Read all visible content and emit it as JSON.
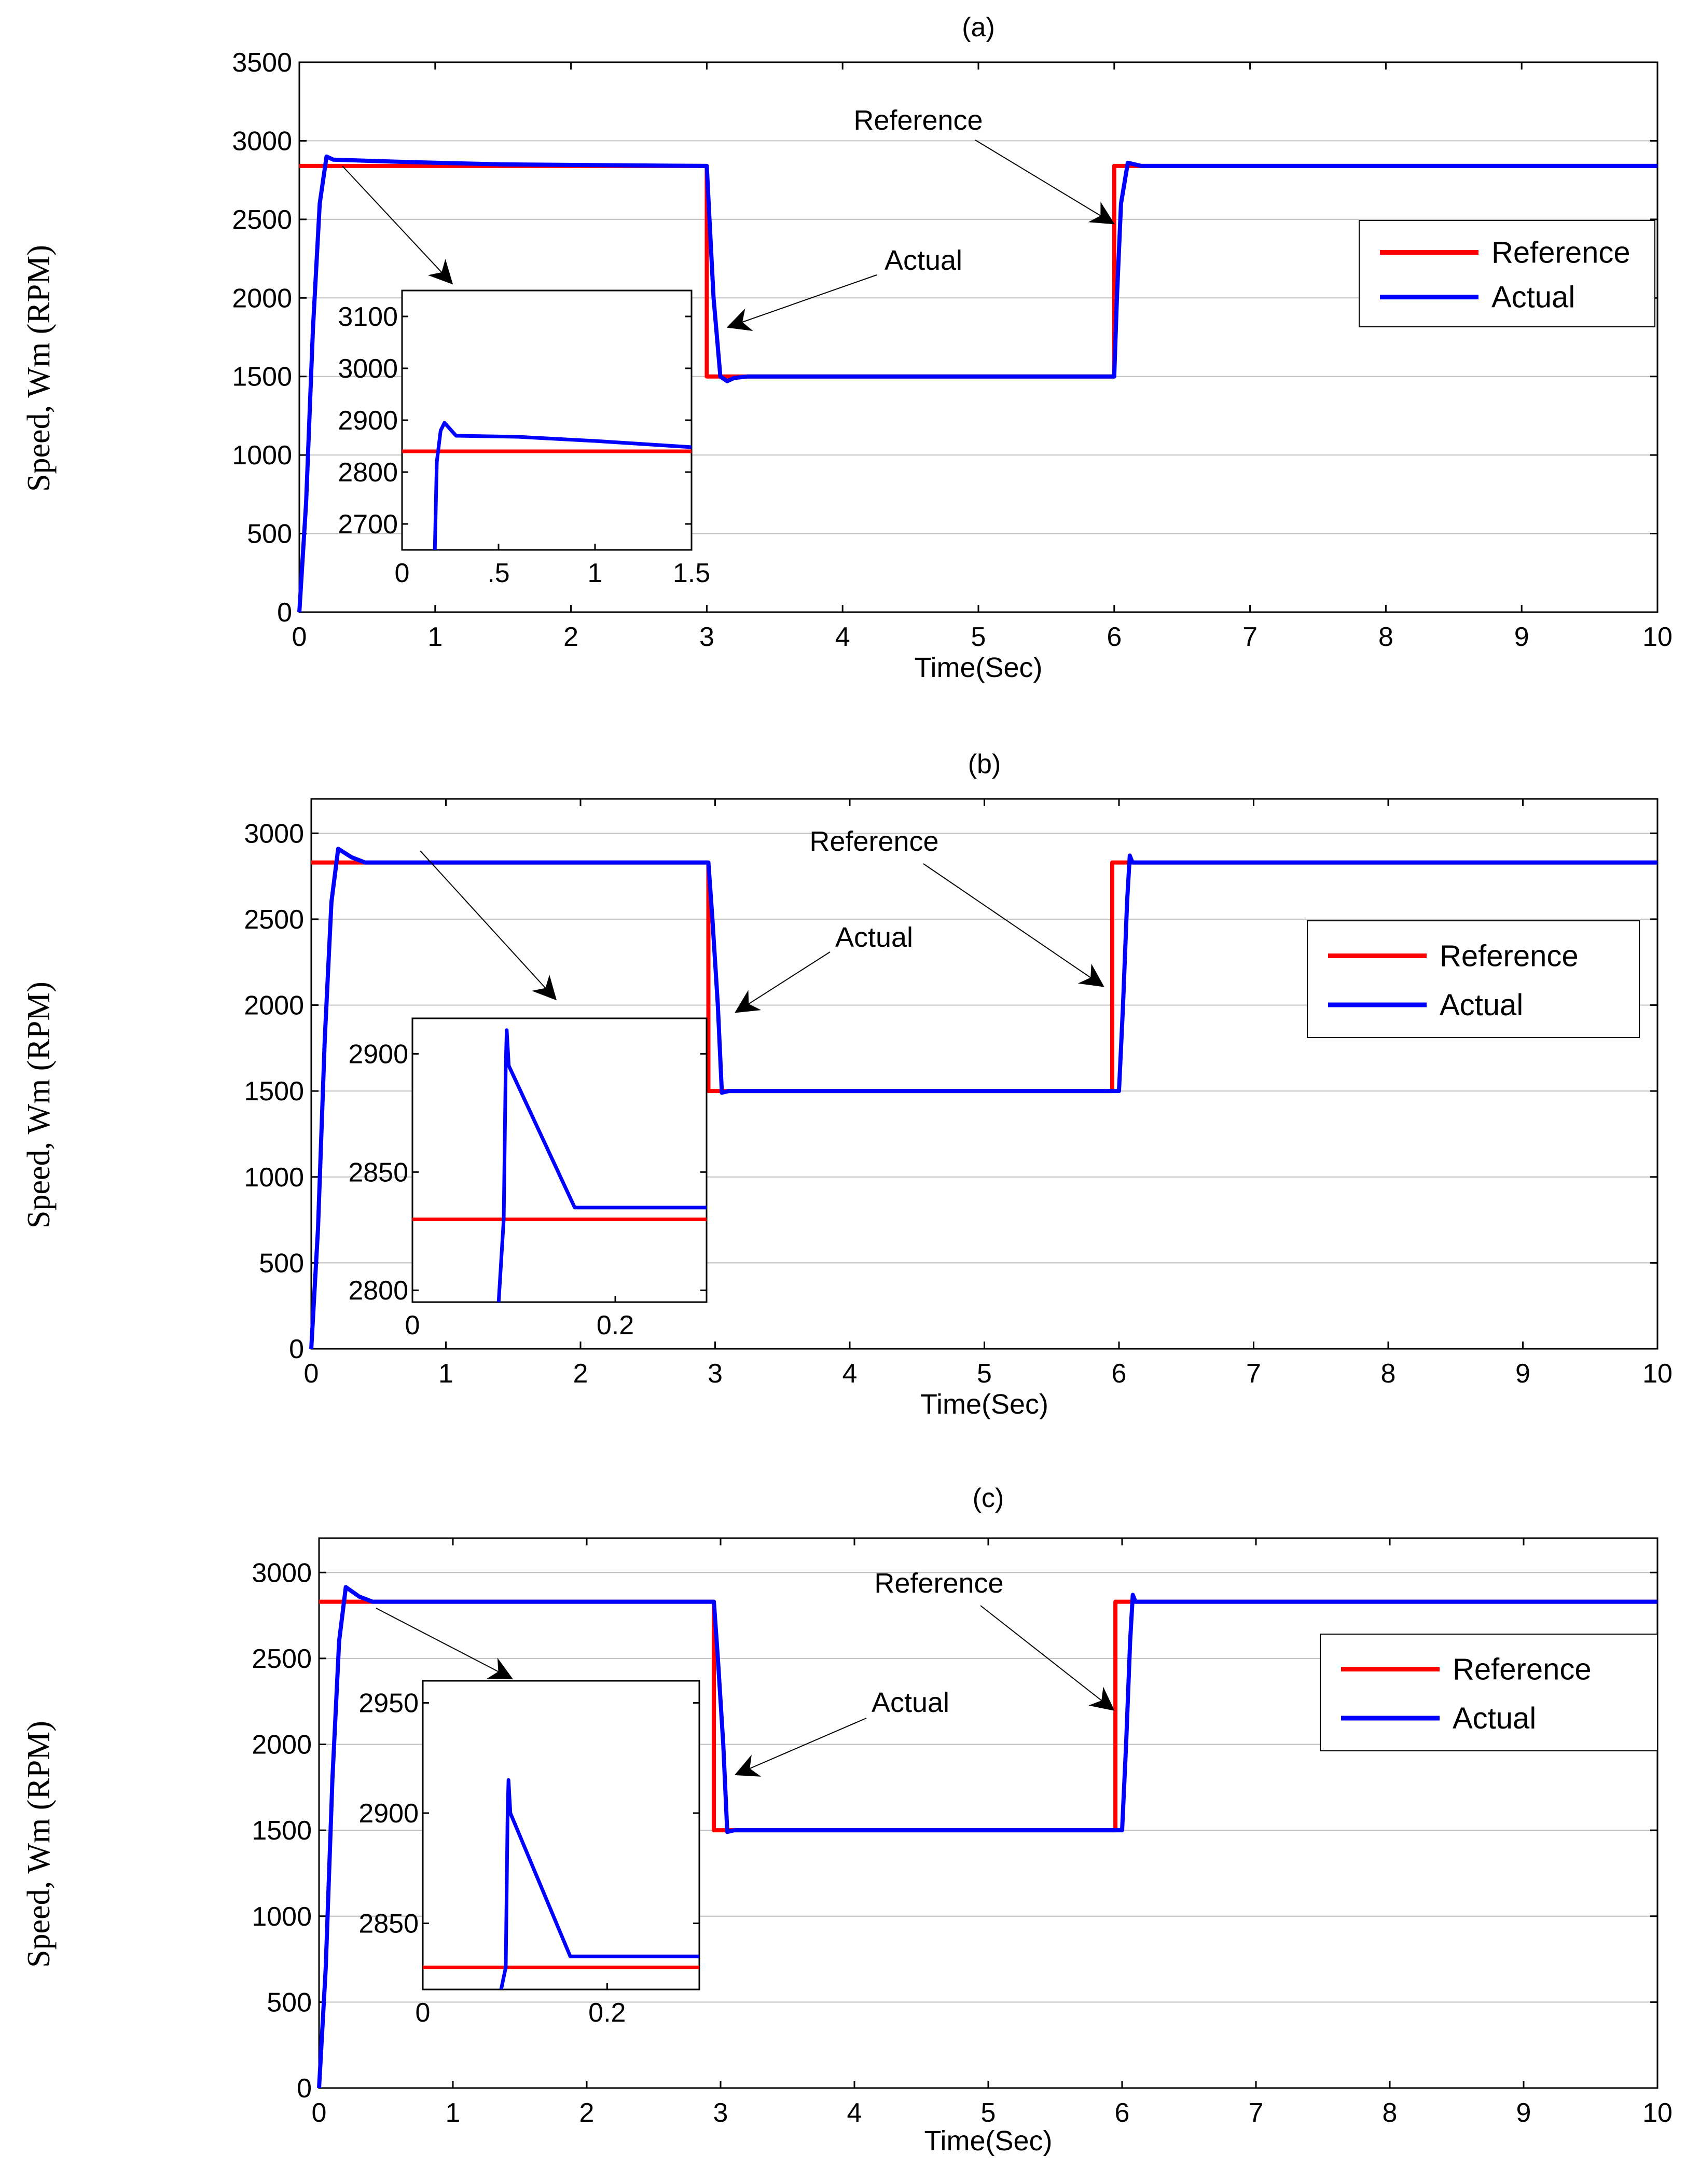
{
  "figure": {
    "panels": [
      {
        "label": "(a)",
        "xlabel": "Time(Sec)",
        "ylabel": "Speed, Wm (RPM)",
        "xlim": [
          0,
          10
        ],
        "ylim": [
          0,
          3500
        ],
        "xticks": [
          "0",
          "1",
          "2",
          "3",
          "4",
          "5",
          "6",
          "7",
          "8",
          "9",
          "10"
        ],
        "yticks": [
          "0",
          "500",
          "1000",
          "1500",
          "2000",
          "2500",
          "3000",
          "3500"
        ],
        "grid": "horizontal",
        "legend": {
          "entries": [
            "Reference",
            "Actual"
          ],
          "placement": "right"
        },
        "annotations": [
          "Reference",
          "Actual"
        ],
        "inset": {
          "xlim": [
            0,
            1.5
          ],
          "ylim": [
            2650,
            3150
          ],
          "xticks": [
            "0",
            ".5",
            "1",
            "1.5"
          ],
          "yticks": [
            "2700",
            "2800",
            "2900",
            "3000",
            "3100"
          ]
        }
      },
      {
        "label": "(b)",
        "xlabel": "Time(Sec)",
        "ylabel": "Speed, Wm (RPM)",
        "xlim": [
          0,
          10
        ],
        "ylim": [
          0,
          3200
        ],
        "xticks": [
          "0",
          "1",
          "2",
          "3",
          "4",
          "5",
          "6",
          "7",
          "8",
          "9",
          "10"
        ],
        "yticks": [
          "0",
          "500",
          "1000",
          "1500",
          "2000",
          "2500",
          "3000"
        ],
        "grid": "horizontal",
        "legend": {
          "entries": [
            "Reference",
            "Actual"
          ],
          "placement": "right"
        },
        "annotations": [
          "Reference",
          "Actual"
        ],
        "inset": {
          "xlim": [
            0,
            0.29
          ],
          "ylim": [
            2795,
            2915
          ],
          "xticks": [
            "0",
            "0.2"
          ],
          "yticks": [
            "2800",
            "2850",
            "2900"
          ]
        }
      },
      {
        "label": "(c)",
        "xlabel": "Time(Sec)",
        "ylabel": "Speed, Wm (RPM)",
        "xlim": [
          0,
          10
        ],
        "ylim": [
          0,
          3200
        ],
        "xticks": [
          "0",
          "1",
          "2",
          "3",
          "4",
          "5",
          "6",
          "7",
          "8",
          "9",
          "10"
        ],
        "yticks": [
          "0",
          "500",
          "1000",
          "1500",
          "2000",
          "2500",
          "3000"
        ],
        "grid": "horizontal",
        "legend": {
          "entries": [
            "Reference",
            "Actual"
          ],
          "placement": "right"
        },
        "annotations": [
          "Reference",
          "Actual"
        ],
        "inset": {
          "xlim": [
            0,
            0.3
          ],
          "ylim": [
            2820,
            2960
          ],
          "xticks": [
            "0",
            "0.2"
          ],
          "yticks": [
            "2850",
            "2900",
            "2950"
          ]
        }
      }
    ]
  },
  "chart_data": [
    {
      "type": "line",
      "title": "(a)",
      "xlabel": "Time(Sec)",
      "ylabel": "Speed, Wm (RPM)",
      "xlim": [
        0,
        10
      ],
      "ylim": [
        0,
        3500
      ],
      "series": [
        {
          "name": "Reference",
          "color": "#ff0000",
          "x": [
            0,
            3,
            3,
            6,
            6,
            10
          ],
          "y": [
            2840,
            2840,
            1500,
            1500,
            2840,
            2840
          ]
        },
        {
          "name": "Actual",
          "color": "#0000ff",
          "x": [
            0,
            0.05,
            0.1,
            0.15,
            0.2,
            0.25,
            0.6,
            1.0,
            1.5,
            3.0,
            3.02,
            3.05,
            3.1,
            3.15,
            3.2,
            3.3,
            6.0,
            6.02,
            6.05,
            6.1,
            6.2,
            10
          ],
          "y": [
            0,
            700,
            1800,
            2600,
            2900,
            2880,
            2870,
            2860,
            2850,
            2840,
            2500,
            2000,
            1500,
            1470,
            1490,
            1500,
            1500,
            2000,
            2600,
            2860,
            2840,
            2840
          ]
        }
      ]
    },
    {
      "type": "line",
      "title": "(b)",
      "xlabel": "Time(Sec)",
      "ylabel": "Speed, Wm (RPM)",
      "xlim": [
        0,
        10
      ],
      "ylim": [
        0,
        3200
      ],
      "series": [
        {
          "name": "Reference",
          "color": "#ff0000",
          "x": [
            0,
            2.95,
            2.95,
            5.95,
            5.95,
            10
          ],
          "y": [
            2830,
            2830,
            1500,
            1500,
            2830,
            2830
          ]
        },
        {
          "name": "Actual",
          "color": "#0000ff",
          "x": [
            0,
            0.05,
            0.1,
            0.15,
            0.2,
            0.3,
            0.4,
            2.95,
            2.98,
            3.02,
            3.05,
            3.1,
            6.0,
            6.03,
            6.06,
            6.08,
            6.1,
            10
          ],
          "y": [
            0,
            700,
            1800,
            2600,
            2910,
            2860,
            2830,
            2830,
            2500,
            2000,
            1490,
            1500,
            1500,
            2000,
            2600,
            2870,
            2830,
            2830
          ]
        }
      ]
    },
    {
      "type": "line",
      "title": "(c)",
      "xlabel": "Time(Sec)",
      "ylabel": "Speed, Wm (RPM)",
      "xlim": [
        0,
        10
      ],
      "ylim": [
        0,
        3200
      ],
      "series": [
        {
          "name": "Reference",
          "color": "#ff0000",
          "x": [
            0,
            2.95,
            2.95,
            5.95,
            5.95,
            10
          ],
          "y": [
            2830,
            2830,
            1500,
            1500,
            2830,
            2830
          ]
        },
        {
          "name": "Actual",
          "color": "#0000ff",
          "x": [
            0,
            0.05,
            0.1,
            0.15,
            0.2,
            0.3,
            0.4,
            2.95,
            2.98,
            3.02,
            3.05,
            3.1,
            6.0,
            6.03,
            6.06,
            6.08,
            6.1,
            10
          ],
          "y": [
            0,
            700,
            1800,
            2600,
            2915,
            2860,
            2830,
            2830,
            2500,
            2000,
            1490,
            1500,
            1500,
            2000,
            2600,
            2870,
            2830,
            2830
          ]
        }
      ]
    }
  ]
}
